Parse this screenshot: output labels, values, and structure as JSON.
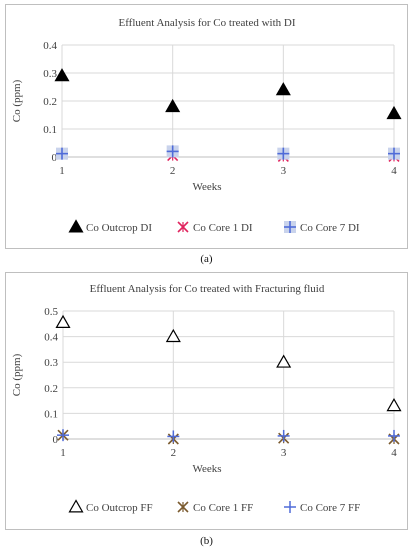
{
  "chart_data": [
    {
      "type": "scatter",
      "title": "Effluent Analysis for Co treated with DI",
      "xlabel": "Weeks",
      "ylabel": "Co (ppm)",
      "x": [
        1,
        2,
        3,
        4
      ],
      "x_tick_labels": [
        "1",
        "2",
        "3",
        "4"
      ],
      "ylim": [
        0,
        0.4
      ],
      "y_tick_labels": [
        "0",
        "0.1",
        "0.2",
        "0.3",
        "0.4"
      ],
      "grid": true,
      "legend_position": "bottom",
      "caption": "(a)",
      "series": [
        {
          "name": "Co Outcrop DI",
          "marker": "filled-triangle",
          "color": "#000000",
          "values": [
            0.29,
            0.18,
            0.24,
            0.155
          ]
        },
        {
          "name": "Co Core 1 DI",
          "marker": "star-cross",
          "color": "#e0245e",
          "values": [
            0.01,
            0.005,
            0.002,
            0.002
          ]
        },
        {
          "name": "Co Core 7 DI",
          "marker": "plus-square",
          "color": "#4f6bd8",
          "values": [
            0.012,
            0.02,
            0.012,
            0.012
          ]
        }
      ]
    },
    {
      "type": "scatter",
      "title": "Effluent Analysis for Co treated with Fracturing fluid",
      "xlabel": "Weeks",
      "ylabel": "Co (ppm)",
      "x": [
        1,
        2,
        3,
        4
      ],
      "x_tick_labels": [
        "1",
        "2",
        "3",
        "4"
      ],
      "ylim": [
        0,
        0.5
      ],
      "y_tick_labels": [
        "0",
        "0.1",
        "0.2",
        "0.3",
        "0.4",
        "0.5"
      ],
      "grid": true,
      "legend_position": "bottom",
      "caption": "(b)",
      "series": [
        {
          "name": "Co Outcrop FF",
          "marker": "open-triangle",
          "color": "#000000",
          "values": [
            0.455,
            0.4,
            0.3,
            0.13
          ]
        },
        {
          "name": "Co Core 1 FF",
          "marker": "star-cross",
          "color": "#7a5a2e",
          "values": [
            0.015,
            0.0,
            0.003,
            0.0
          ]
        },
        {
          "name": "Co Core 7 FF",
          "marker": "plus",
          "color": "#4f6bd8",
          "values": [
            0.015,
            0.01,
            0.012,
            0.012
          ]
        }
      ]
    }
  ]
}
